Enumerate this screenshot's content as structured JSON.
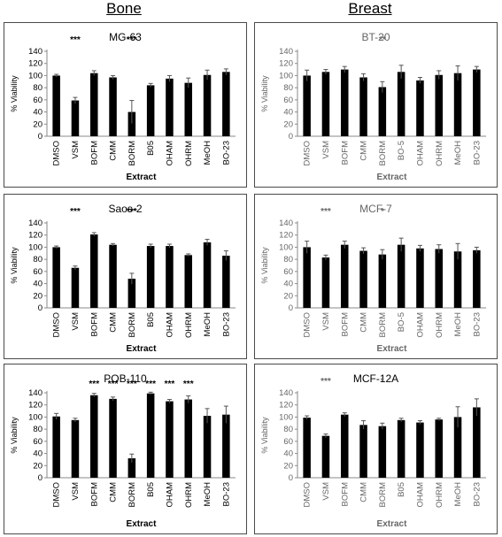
{
  "columns": {
    "bone": "Bone",
    "breast": "Breast"
  },
  "chart_data": [
    {
      "id": "mg63",
      "type": "bar",
      "title": "MG-63",
      "group": "bone",
      "categories": [
        "DMSO",
        "VSM",
        "BOFM",
        "CMM",
        "BORM",
        "B05",
        "OHAM",
        "OHRM",
        "MeOH",
        "BO-23"
      ],
      "values": [
        100,
        59,
        104,
        97,
        40,
        84,
        95,
        88,
        101,
        106
      ],
      "errors": [
        2,
        5,
        4,
        3,
        19,
        3,
        5,
        8,
        8,
        5
      ],
      "significance": [
        "",
        "***",
        "",
        "",
        "***",
        "",
        "",
        "",
        "",
        ""
      ],
      "xlabel": "Extract",
      "ylabel": "% Viability",
      "ylim": [
        0,
        140
      ],
      "yticks": [
        0,
        20,
        40,
        60,
        80,
        100,
        120,
        140
      ],
      "grid": false,
      "legend": "none"
    },
    {
      "id": "bt20",
      "type": "bar",
      "title": "BT-20",
      "group": "breast",
      "categories": [
        "DMSO",
        "VSM",
        "BOFM",
        "CMM",
        "BORM",
        "BO-5",
        "OHAM",
        "OHRM",
        "MeOH",
        "BO-23"
      ],
      "values": [
        100,
        106,
        110,
        97,
        81,
        106,
        92,
        101,
        104,
        110
      ],
      "errors": [
        9,
        4,
        5,
        6,
        9,
        11,
        5,
        7,
        12,
        5
      ],
      "significance": [
        "",
        "",
        "",
        "",
        "**",
        "",
        "",
        "",
        "",
        ""
      ],
      "xlabel": "Extract",
      "ylabel": "% Viability",
      "ylim": [
        0,
        140
      ],
      "yticks": [
        0,
        20,
        40,
        60,
        80,
        100,
        120,
        140
      ],
      "grid": false,
      "legend": "none"
    },
    {
      "id": "saos2",
      "type": "bar",
      "title": "Saos-2",
      "group": "bone",
      "categories": [
        "DMSO",
        "VSM",
        "BOFM",
        "CMM",
        "BORM",
        "B05",
        "OHAM",
        "OHRM",
        "MeOH",
        "BO-23"
      ],
      "values": [
        100,
        66,
        121,
        104,
        48,
        102,
        102,
        87,
        108,
        86
      ],
      "errors": [
        2,
        3,
        3,
        2,
        9,
        3,
        3,
        2,
        5,
        8
      ],
      "significance": [
        "",
        "***",
        "",
        "",
        "***",
        "",
        "",
        "",
        "",
        ""
      ],
      "xlabel": "Extract",
      "ylabel": "% Viability",
      "ylim": [
        0,
        140
      ],
      "yticks": [
        0,
        20,
        40,
        60,
        80,
        100,
        120,
        140
      ],
      "grid": false,
      "legend": "none"
    },
    {
      "id": "mcf7",
      "type": "bar",
      "title": "MCF-7",
      "group": "breast",
      "categories": [
        "DMSO",
        "VSM",
        "BOFM",
        "CMM",
        "BORM",
        "BO-5",
        "OHAM",
        "OHRM",
        "MeOH",
        "BO-23"
      ],
      "values": [
        100,
        83,
        104,
        94,
        88,
        104,
        98,
        97,
        93,
        95
      ],
      "errors": [
        10,
        4,
        6,
        5,
        8,
        11,
        5,
        7,
        13,
        5
      ],
      "significance": [
        "",
        "***",
        "",
        "",
        "*",
        "",
        "",
        "",
        "",
        ""
      ],
      "xlabel": "Extract",
      "ylabel": "% Viability",
      "ylim": [
        0,
        140
      ],
      "yticks": [
        0,
        20,
        40,
        60,
        80,
        100,
        120,
        140
      ],
      "grid": false,
      "legend": "none"
    },
    {
      "id": "pob110",
      "type": "bar",
      "title": "POB-110",
      "group": "bone",
      "categories": [
        "DMSO",
        "VSM",
        "BOFM",
        "CMM",
        "BORM",
        "B05",
        "OHAM",
        "OHRM",
        "MeOH",
        "BO-23"
      ],
      "values": [
        101,
        95,
        136,
        130,
        32,
        139,
        126,
        129,
        102,
        104
      ],
      "errors": [
        5,
        3,
        3,
        3,
        7,
        2,
        3,
        6,
        12,
        14
      ],
      "significance": [
        "",
        "",
        "***",
        "***",
        "***",
        "***",
        "***",
        "***",
        "",
        ""
      ],
      "xlabel": "Extract",
      "ylabel": "% Viability",
      "ylim": [
        0,
        140
      ],
      "yticks": [
        0,
        20,
        40,
        60,
        80,
        100,
        120,
        140
      ],
      "grid": false,
      "legend": "none"
    },
    {
      "id": "mcf12a",
      "type": "bar",
      "title": "MCF-12A",
      "group": "breast",
      "categories": [
        "DMSO",
        "VSM",
        "BOFM",
        "CMM",
        "BORM",
        "B05",
        "OHAM",
        "OHRM",
        "MeOH",
        "BO-23"
      ],
      "values": [
        99,
        69,
        104,
        87,
        85,
        95,
        91,
        96,
        100,
        116
      ],
      "errors": [
        3,
        3,
        3,
        7,
        5,
        3,
        3,
        2,
        17,
        14
      ],
      "significance": [
        "",
        "***",
        "",
        "",
        "*",
        "",
        "",
        "",
        "",
        ""
      ],
      "xlabel": "Extract",
      "ylabel": "% Viability",
      "ylim": [
        0,
        140
      ],
      "yticks": [
        0,
        20,
        40,
        60,
        80,
        100,
        120,
        140
      ],
      "grid": false,
      "legend": "none"
    }
  ],
  "colors": {
    "bar": "#000000",
    "frame": "#4a4a4a",
    "axis": "#8a8a8a",
    "breast_text": "#666666"
  }
}
